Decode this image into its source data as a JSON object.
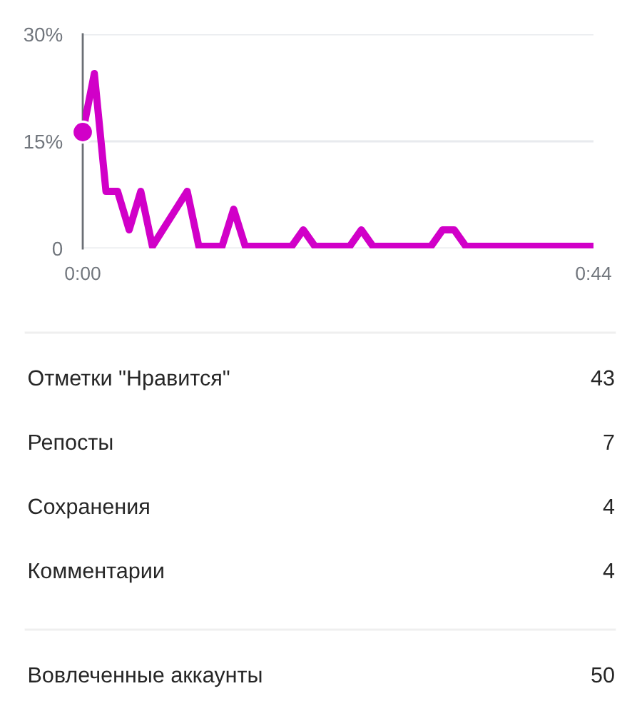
{
  "chart_data": [
    {
      "type": "line",
      "series": [
        {
          "type": "line",
          "color": "#d100c8",
          "x": [
            0,
            1,
            2,
            3,
            4,
            5,
            6,
            9,
            10,
            12,
            13,
            14,
            18,
            19,
            20,
            23,
            24,
            25,
            30,
            31,
            32,
            33,
            44
          ],
          "values": [
            16.3,
            24.5,
            8,
            8,
            2.6,
            8,
            0.3,
            8,
            0.3,
            0.3,
            5.5,
            0.3,
            0.3,
            2.6,
            0.3,
            0.3,
            2.6,
            0.3,
            0.3,
            2.6,
            2.6,
            0.3,
            0.3
          ]
        },
        {
          "type": "scatter",
          "color": "#d100c8",
          "marker": "circle",
          "x": [
            0
          ],
          "values": [
            16.3
          ]
        }
      ],
      "xlim": [
        0,
        44
      ],
      "ylim": [
        0,
        30
      ],
      "xticks": [
        {
          "value": 0,
          "label": "0:00"
        },
        {
          "value": 44,
          "label": "0:44"
        }
      ],
      "yticks": [
        0,
        {
          "value": 15,
          "label": "15%"
        },
        {
          "value": 30,
          "label": "30%"
        }
      ],
      "grid": "y",
      "line_style": "solid"
    },
    {
      "type": "other",
      "categories": [
        "Отметки \"Нравится\"",
        "Репосты",
        "Сохранения",
        "Комментарии"
      ],
      "values": [
        43,
        7,
        4,
        4
      ],
      "data_labels": true
    },
    {
      "type": "other",
      "categories": [
        "Вовлеченные аккаунты"
      ],
      "values": [
        50
      ],
      "data_labels": true
    }
  ]
}
